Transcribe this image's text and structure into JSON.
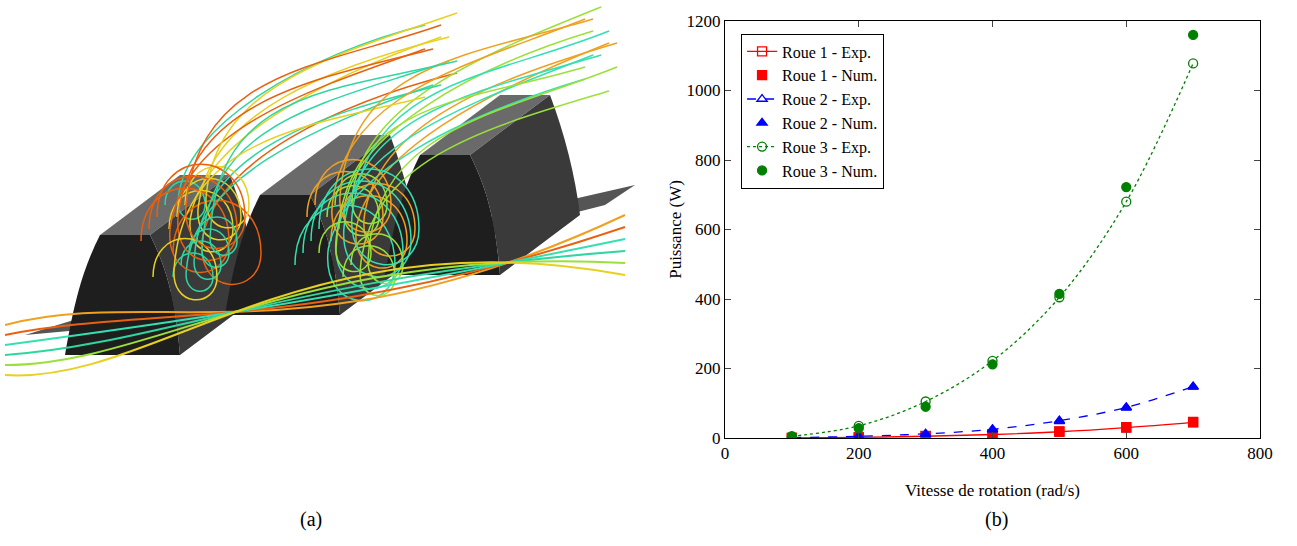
{
  "panel_labels": [
    "(a)",
    "(b)"
  ],
  "chart_data": {
    "type": "line",
    "x_label": "Vitesse de rotation (rad/s)",
    "y_label": "Puissance (W)",
    "x": [
      100,
      200,
      300,
      400,
      500,
      600,
      700
    ],
    "xlim": [
      0,
      800
    ],
    "xticks": [
      0,
      200,
      400,
      600,
      800
    ],
    "ylim": [
      0,
      1200
    ],
    "yticks": [
      0,
      200,
      400,
      600,
      800,
      1000,
      1200
    ],
    "legend": "upper left",
    "series": [
      {
        "name": "Roue 1 - Exp.",
        "type": "line",
        "color": "#ff0000",
        "marker": "square-open",
        "line_style": "solid",
        "values": [
          0.5,
          2,
          5,
          10,
          18,
          30,
          45
        ]
      },
      {
        "name": "Roue 1 - Num.",
        "type": "scatter",
        "color": "#ff0000",
        "marker": "square",
        "values": [
          0.5,
          2,
          6,
          11,
          19,
          31,
          46
        ]
      },
      {
        "name": "Roue 2 - Exp.",
        "type": "line",
        "color": "#0000ff",
        "marker": "triangle-up-open",
        "line_style": "dash",
        "values": [
          1,
          5,
          12,
          25,
          50,
          88,
          148
        ]
      },
      {
        "name": "Roue 2 - Num.",
        "type": "scatter",
        "color": "#0000ff",
        "marker": "triangle-up",
        "values": [
          1,
          4,
          11,
          24,
          48,
          87,
          147
        ]
      },
      {
        "name": "Roue 3 - Exp.",
        "type": "line",
        "color": "#008000",
        "marker": "circle-open",
        "line_style": "dot",
        "values": [
          5,
          35,
          105,
          222,
          405,
          680,
          1078
        ]
      },
      {
        "name": "Roue 3 - Num.",
        "type": "scatter",
        "color": "#008000",
        "marker": "circle",
        "values": [
          4,
          28,
          90,
          212,
          415,
          722,
          1160
        ]
      }
    ]
  }
}
